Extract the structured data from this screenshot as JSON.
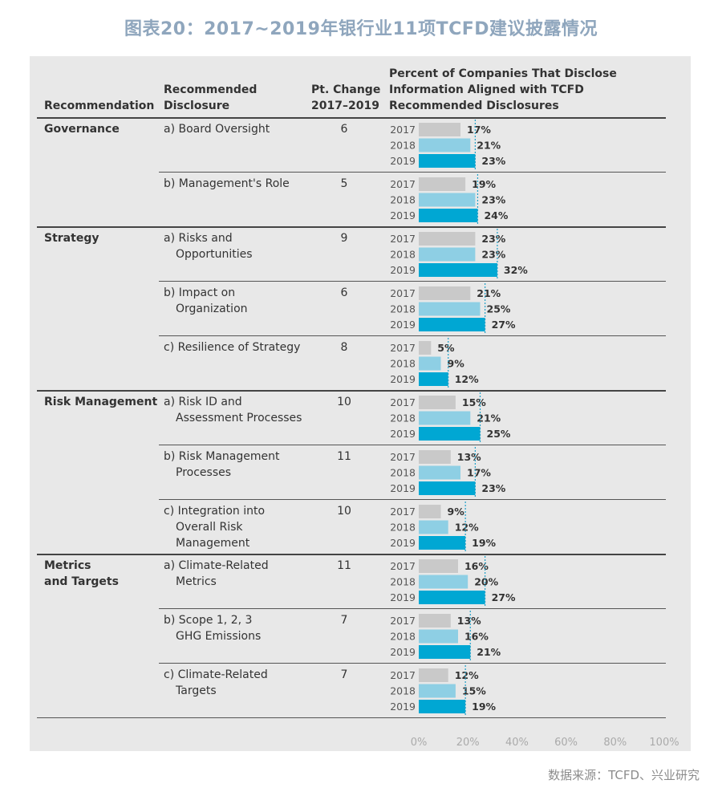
{
  "title": "图表20：2017~2019年银行业11项TCFD建议披露情况",
  "source": "数据来源：TCFD、兴业研究",
  "headers": {
    "recommendation": "Recommendation",
    "disclosure_line1": "Recommended",
    "disclosure_line2": "Disclosure",
    "change_line1": "Pt. Change",
    "change_line2": "2017–2019",
    "percent_line1": "Percent of Companies That Disclose",
    "percent_line2": "Information Aligned with TCFD",
    "percent_line3": "Recommended Disclosures"
  },
  "colors": {
    "y2017": "#c9c9c9",
    "y2018": "#8ecfe4",
    "y2019": "#00a7d3",
    "ref_line": "#1fa0c8",
    "title": "#8fa6bd"
  },
  "chart_data": {
    "type": "bar",
    "orientation": "horizontal",
    "years": [
      "2017",
      "2018",
      "2019"
    ],
    "xlim": [
      0,
      100
    ],
    "x_ticks": [
      "0%",
      "20%",
      "40%",
      "60%",
      "80%",
      "100%"
    ],
    "groups": [
      {
        "category": [
          "Governance"
        ],
        "rows": [
          {
            "disclosure": [
              "a) Board Oversight"
            ],
            "change": "6",
            "values": [
              17,
              21,
              23
            ],
            "labels": [
              "17%",
              "21%",
              "23%"
            ]
          },
          {
            "disclosure": [
              "b) Management's Role"
            ],
            "change": "5",
            "values": [
              19,
              23,
              24
            ],
            "labels": [
              "19%",
              "23%",
              "24%"
            ]
          }
        ]
      },
      {
        "category": [
          "Strategy"
        ],
        "rows": [
          {
            "disclosure": [
              "a) Risks and",
              "Opportunities"
            ],
            "change": "9",
            "values": [
              23,
              23,
              32
            ],
            "labels": [
              "23%",
              "23%",
              "32%"
            ]
          },
          {
            "disclosure": [
              "b) Impact on",
              "Organization"
            ],
            "change": "6",
            "values": [
              21,
              25,
              27
            ],
            "labels": [
              "21%",
              "25%",
              "27%"
            ]
          },
          {
            "disclosure": [
              "c) Resilience of Strategy"
            ],
            "change": "8",
            "values": [
              5,
              9,
              12
            ],
            "labels": [
              "5%",
              "9%",
              "12%"
            ]
          }
        ]
      },
      {
        "category": [
          "Risk Management"
        ],
        "rows": [
          {
            "disclosure": [
              "a) Risk ID and",
              "Assessment Processes"
            ],
            "change": "10",
            "values": [
              15,
              21,
              25
            ],
            "labels": [
              "15%",
              "21%",
              "25%"
            ]
          },
          {
            "disclosure": [
              "b) Risk Management",
              "Processes"
            ],
            "change": "11",
            "values": [
              13,
              17,
              23
            ],
            "labels": [
              "13%",
              "17%",
              "23%"
            ]
          },
          {
            "disclosure": [
              "c) Integration into",
              "Overall Risk",
              "Management"
            ],
            "change": "10",
            "values": [
              9,
              12,
              19
            ],
            "labels": [
              "9%",
              "12%",
              "19%"
            ]
          }
        ]
      },
      {
        "category": [
          "Metrics",
          "and Targets"
        ],
        "rows": [
          {
            "disclosure": [
              "a) Climate-Related",
              "Metrics"
            ],
            "change": "11",
            "values": [
              16,
              20,
              27
            ],
            "labels": [
              "16%",
              "20%",
              "27%"
            ]
          },
          {
            "disclosure": [
              "b) Scope 1, 2, 3",
              "GHG Emissions"
            ],
            "change": "7",
            "values": [
              13,
              16,
              21
            ],
            "labels": [
              "13%",
              "16%",
              "21%"
            ]
          },
          {
            "disclosure": [
              "c) Climate-Related",
              "Targets"
            ],
            "change": "7",
            "values": [
              12,
              15,
              19
            ],
            "labels": [
              "12%",
              "15%",
              "19%"
            ]
          }
        ]
      }
    ]
  }
}
